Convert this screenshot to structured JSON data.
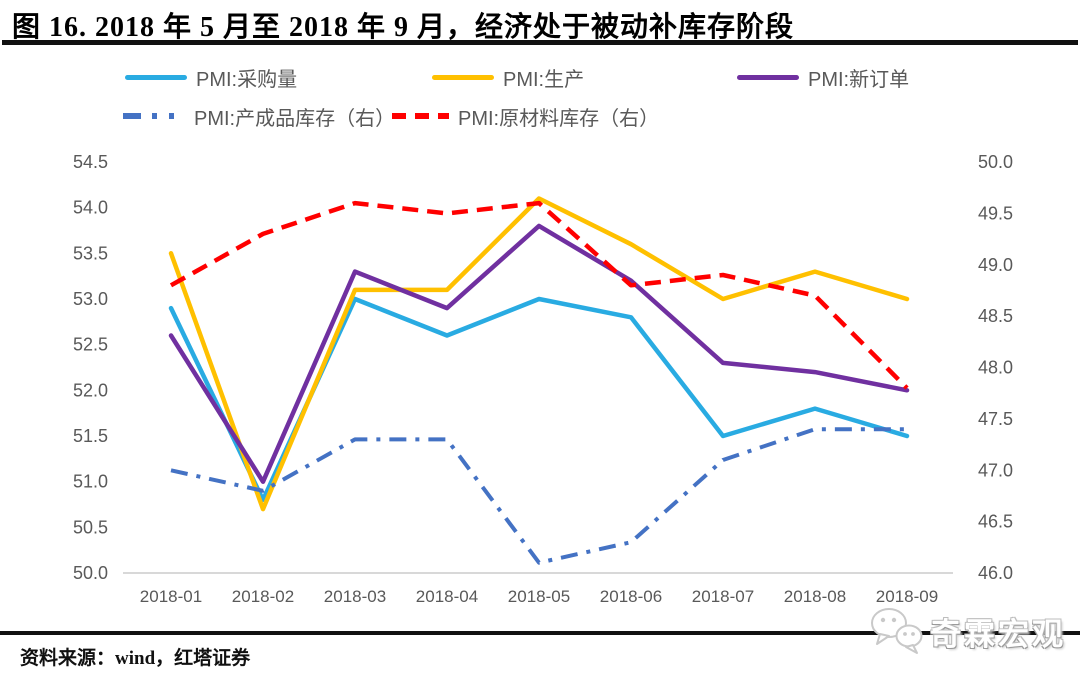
{
  "title": "图 16. 2018 年 5 月至 2018 年 9 月，经济处于被动补库存阶段",
  "source_line": "资料来源：wind，红塔证券",
  "brand": {
    "text": "奇霖宏观",
    "icon": "wechat-bubbles-icon"
  },
  "colors": {
    "purchases": "#29ABE2",
    "production": "#FFC000",
    "new_orders": "#7030A0",
    "finished_goods_inventory": "#4472C4",
    "raw_materials_inventory": "#FF0000",
    "axis_text": "#595959",
    "baseline": "#D8D8D8",
    "rule": "#111111"
  },
  "chart_data": {
    "type": "line",
    "title": "",
    "xlabel": "",
    "ylabel_left": "",
    "ylabel_right": "",
    "grid": false,
    "legend_position": "top",
    "categories": [
      "2018-01",
      "2018-02",
      "2018-03",
      "2018-04",
      "2018-05",
      "2018-06",
      "2018-07",
      "2018-08",
      "2018-09"
    ],
    "left_axis": {
      "min": 50.0,
      "max": 54.5,
      "step": 0.5,
      "ticks": [
        "54.5",
        "54.0",
        "53.5",
        "53.0",
        "52.5",
        "52.0",
        "51.5",
        "51.0",
        "50.5",
        "50.0"
      ]
    },
    "right_axis": {
      "min": 46.0,
      "max": 50.0,
      "step": 0.5,
      "ticks": [
        "50.0",
        "49.5",
        "49.0",
        "48.5",
        "48.0",
        "47.5",
        "47.0",
        "46.5",
        "46.0"
      ]
    },
    "series": [
      {
        "name": "PMI:采购量",
        "axis": "left",
        "style": "solid",
        "color": "#29ABE2",
        "values": [
          52.9,
          50.8,
          53.0,
          52.6,
          53.0,
          52.8,
          51.5,
          51.8,
          51.5
        ]
      },
      {
        "name": "PMI:生产",
        "axis": "left",
        "style": "solid",
        "color": "#FFC000",
        "values": [
          53.5,
          50.7,
          53.1,
          53.1,
          54.1,
          53.6,
          53.0,
          53.3,
          53.0
        ]
      },
      {
        "name": "PMI:新订单",
        "axis": "left",
        "style": "solid",
        "color": "#7030A0",
        "values": [
          52.6,
          51.0,
          53.3,
          52.9,
          53.8,
          53.2,
          52.3,
          52.2,
          52.0
        ]
      },
      {
        "name": "PMI:产成品库存（右）",
        "axis": "right",
        "style": "dashdot",
        "color": "#4472C4",
        "values": [
          47.0,
          46.8,
          47.3,
          47.3,
          46.1,
          46.3,
          47.1,
          47.4,
          47.4
        ]
      },
      {
        "name": "PMI:原材料库存（右）",
        "axis": "right",
        "style": "dashed",
        "color": "#FF0000",
        "values": [
          48.8,
          49.3,
          49.6,
          49.5,
          49.6,
          48.8,
          48.9,
          48.7,
          47.8
        ]
      }
    ]
  }
}
